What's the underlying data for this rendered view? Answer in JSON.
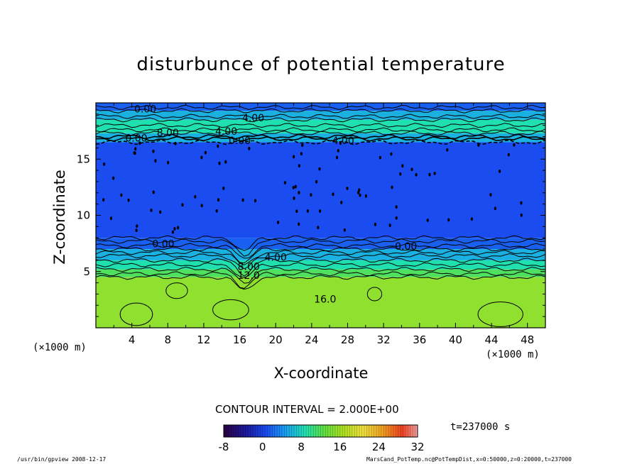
{
  "chart_data": {
    "type": "heatmap",
    "title": "disturbunce of potential temperature",
    "xlabel": "X-coordinate",
    "ylabel": "Z-coordinate",
    "x_unit": "(×1000 m)",
    "xlim": [
      0,
      50
    ],
    "ylim": [
      0,
      20
    ],
    "x_ticks": [
      4,
      8,
      12,
      16,
      20,
      24,
      28,
      32,
      36,
      40,
      44,
      48
    ],
    "y_ticks": [
      5,
      10,
      15
    ],
    "contour_interval_label": "CONTOUR INTERVAL = 2.000E+00",
    "time_label": "t=237000 s",
    "colorbar": {
      "min": -8,
      "max": 32,
      "ticks": [
        -8,
        0,
        8,
        16,
        24,
        32
      ]
    },
    "contour_labels": [
      {
        "text": "0.00",
        "x": 5.5,
        "z": 19.4
      },
      {
        "text": "4.00",
        "x": 17.5,
        "z": 18.6
      },
      {
        "text": "8.00",
        "x": 8.0,
        "z": 17.3
      },
      {
        "text": "4.00",
        "x": 14.5,
        "z": 17.4
      },
      {
        "text": "0.00",
        "x": 4.5,
        "z": 16.8
      },
      {
        "text": "0.00",
        "x": 16.0,
        "z": 16.6
      },
      {
        "text": "4.00",
        "x": 27.5,
        "z": 16.6
      },
      {
        "text": "0.00",
        "x": 7.5,
        "z": 7.4
      },
      {
        "text": "4.00",
        "x": 20.0,
        "z": 6.2
      },
      {
        "text": "0.00",
        "x": 34.5,
        "z": 7.2
      },
      {
        "text": "8.00",
        "x": 17.0,
        "z": 5.4
      },
      {
        "text": "12.0",
        "x": 17.0,
        "z": 4.6
      },
      {
        "text": "16.0",
        "x": 25.5,
        "z": 2.5
      }
    ],
    "layers": [
      {
        "z0": 0.0,
        "z1": 4.5,
        "value": 16
      },
      {
        "z0": 4.5,
        "z1": 5.2,
        "value": 12
      },
      {
        "z0": 5.2,
        "z1": 6.0,
        "value": 8
      },
      {
        "z0": 6.0,
        "z1": 7.0,
        "value": 4
      },
      {
        "z0": 7.0,
        "z1": 8.0,
        "value": 0
      },
      {
        "z0": 8.0,
        "z1": 16.5,
        "value": -2
      },
      {
        "z0": 16.5,
        "z1": 17.3,
        "value": 4
      },
      {
        "z0": 17.3,
        "z1": 18.5,
        "value": 8
      },
      {
        "z0": 18.5,
        "z1": 19.3,
        "value": 4
      },
      {
        "z0": 19.3,
        "z1": 20.0,
        "value": 0
      }
    ]
  },
  "footer": {
    "left": "/usr/bin/gpview  2008-12-17",
    "right": "MarsCand_PotTemp.nc@PotTempDist,x=0:50000,z=0:20000,t=237000"
  }
}
